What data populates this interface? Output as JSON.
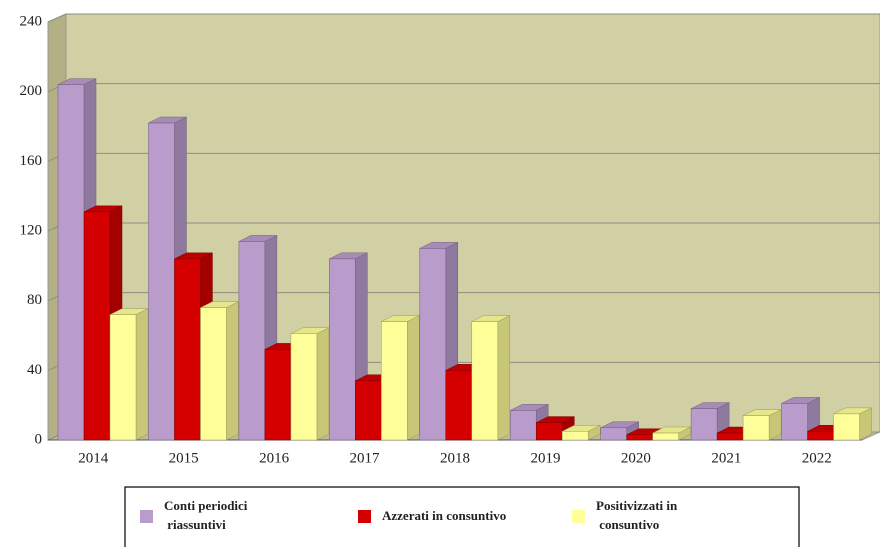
{
  "chart_data": {
    "type": "bar3d",
    "categories": [
      "2014",
      "2015",
      "2016",
      "2017",
      "2018",
      "2019",
      "2020",
      "2021",
      "2022"
    ],
    "series": [
      {
        "name": "Conti periodici riassuntivi",
        "color": "#b99bcc",
        "values": [
          204,
          182,
          114,
          104,
          110,
          17,
          7,
          18,
          21
        ]
      },
      {
        "name": "Azzerati in consuntivo",
        "color": "#d40000",
        "values": [
          131,
          104,
          52,
          34,
          40,
          10,
          3,
          4,
          5
        ]
      },
      {
        "name": "Positivizzati in consuntivo",
        "color": "#ffff99",
        "values": [
          72,
          76,
          61,
          68,
          68,
          5,
          4,
          14,
          15
        ]
      }
    ],
    "ylim": [
      0,
      240
    ],
    "yticks": [
      0,
      40,
      80,
      120,
      160,
      200,
      240
    ],
    "grid": true,
    "legend": "bottom"
  }
}
